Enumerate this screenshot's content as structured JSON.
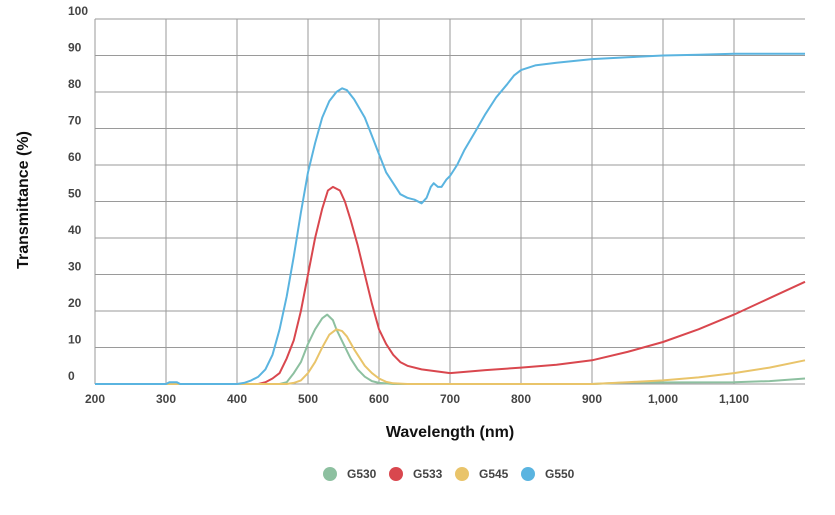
{
  "chart_data": {
    "type": "line",
    "title": "",
    "xlabel": "Wavelength (nm)",
    "ylabel": "Transmittance (%)",
    "xlim": [
      200,
      1200
    ],
    "ylim": [
      0,
      100
    ],
    "grid": true,
    "legend_position": "bottom-center",
    "xticks": [
      200,
      300,
      400,
      500,
      600,
      700,
      800,
      900,
      1000,
      1100
    ],
    "xtick_labels": [
      "200",
      "300",
      "400",
      "500",
      "600",
      "700",
      "800",
      "900",
      "1,000",
      "1,100"
    ],
    "yticks": [
      0,
      10,
      20,
      30,
      40,
      50,
      60,
      70,
      80,
      90,
      100
    ],
    "ytick_labels": [
      "0",
      "10",
      "20",
      "30",
      "40",
      "50",
      "60",
      "70",
      "80",
      "90",
      "100"
    ],
    "series": [
      {
        "name": "G530",
        "color": "#8dc0a0",
        "points": [
          [
            200,
            0
          ],
          [
            460,
            0
          ],
          [
            470,
            0.5
          ],
          [
            480,
            3
          ],
          [
            490,
            6
          ],
          [
            500,
            11
          ],
          [
            510,
            15
          ],
          [
            520,
            18
          ],
          [
            527,
            19
          ],
          [
            535,
            17.5
          ],
          [
            540,
            15
          ],
          [
            550,
            11
          ],
          [
            560,
            7
          ],
          [
            570,
            4
          ],
          [
            580,
            2
          ],
          [
            590,
            0.8
          ],
          [
            600,
            0.3
          ],
          [
            620,
            0
          ],
          [
            900,
            0
          ],
          [
            950,
            0.4
          ],
          [
            1100,
            0.5
          ],
          [
            1150,
            0.8
          ],
          [
            1200,
            1.5
          ]
        ]
      },
      {
        "name": "G533",
        "color": "#d9474e",
        "points": [
          [
            200,
            0
          ],
          [
            430,
            0
          ],
          [
            440,
            0.5
          ],
          [
            450,
            1.5
          ],
          [
            460,
            3
          ],
          [
            470,
            7
          ],
          [
            480,
            12
          ],
          [
            490,
            20
          ],
          [
            500,
            30
          ],
          [
            510,
            40
          ],
          [
            520,
            48
          ],
          [
            528,
            53
          ],
          [
            535,
            54
          ],
          [
            545,
            53
          ],
          [
            552,
            50
          ],
          [
            560,
            45
          ],
          [
            570,
            38
          ],
          [
            580,
            30
          ],
          [
            590,
            22
          ],
          [
            600,
            15
          ],
          [
            610,
            11
          ],
          [
            620,
            8
          ],
          [
            630,
            6
          ],
          [
            640,
            5
          ],
          [
            660,
            4
          ],
          [
            680,
            3.5
          ],
          [
            700,
            3
          ],
          [
            750,
            3.8
          ],
          [
            800,
            4.5
          ],
          [
            850,
            5.3
          ],
          [
            900,
            6.5
          ],
          [
            950,
            8.8
          ],
          [
            1000,
            11.5
          ],
          [
            1050,
            15
          ],
          [
            1100,
            19
          ],
          [
            1150,
            23.5
          ],
          [
            1200,
            28
          ]
        ]
      },
      {
        "name": "G545",
        "color": "#e9c46a",
        "points": [
          [
            200,
            0
          ],
          [
            470,
            0
          ],
          [
            480,
            0.3
          ],
          [
            490,
            1
          ],
          [
            500,
            3
          ],
          [
            510,
            6
          ],
          [
            520,
            10
          ],
          [
            530,
            13.5
          ],
          [
            540,
            15
          ],
          [
            548,
            14.5
          ],
          [
            555,
            13
          ],
          [
            565,
            9.5
          ],
          [
            580,
            5
          ],
          [
            590,
            3
          ],
          [
            600,
            1.5
          ],
          [
            610,
            0.6
          ],
          [
            620,
            0.2
          ],
          [
            640,
            0
          ],
          [
            900,
            0
          ],
          [
            950,
            0.5
          ],
          [
            1000,
            1
          ],
          [
            1050,
            1.8
          ],
          [
            1100,
            3
          ],
          [
            1150,
            4.5
          ],
          [
            1200,
            6.5
          ]
        ]
      },
      {
        "name": "G550",
        "color": "#5ab4e0",
        "points": [
          [
            200,
            0
          ],
          [
            300,
            0
          ],
          [
            305,
            0.5
          ],
          [
            315,
            0.5
          ],
          [
            320,
            0
          ],
          [
            400,
            0
          ],
          [
            410,
            0.3
          ],
          [
            420,
            1
          ],
          [
            430,
            2
          ],
          [
            440,
            4
          ],
          [
            450,
            8
          ],
          [
            460,
            15
          ],
          [
            470,
            24
          ],
          [
            480,
            35
          ],
          [
            490,
            47
          ],
          [
            500,
            58
          ],
          [
            510,
            66
          ],
          [
            520,
            73
          ],
          [
            530,
            77.5
          ],
          [
            540,
            80
          ],
          [
            548,
            81
          ],
          [
            555,
            80.5
          ],
          [
            565,
            78
          ],
          [
            580,
            73
          ],
          [
            590,
            68
          ],
          [
            600,
            63
          ],
          [
            610,
            58
          ],
          [
            620,
            55
          ],
          [
            630,
            52
          ],
          [
            640,
            51
          ],
          [
            650,
            50.5
          ],
          [
            660,
            49.5
          ],
          [
            667,
            51
          ],
          [
            673,
            54
          ],
          [
            677,
            55
          ],
          [
            683,
            54
          ],
          [
            688,
            54
          ],
          [
            695,
            56
          ],
          [
            700,
            57
          ],
          [
            710,
            60
          ],
          [
            720,
            64
          ],
          [
            735,
            69
          ],
          [
            750,
            74
          ],
          [
            765,
            78.5
          ],
          [
            780,
            82
          ],
          [
            790,
            84.5
          ],
          [
            800,
            86
          ],
          [
            820,
            87.3
          ],
          [
            850,
            88
          ],
          [
            900,
            89
          ],
          [
            950,
            89.5
          ],
          [
            1000,
            90
          ],
          [
            1050,
            90.2
          ],
          [
            1100,
            90.5
          ],
          [
            1200,
            90.5
          ]
        ]
      }
    ]
  }
}
